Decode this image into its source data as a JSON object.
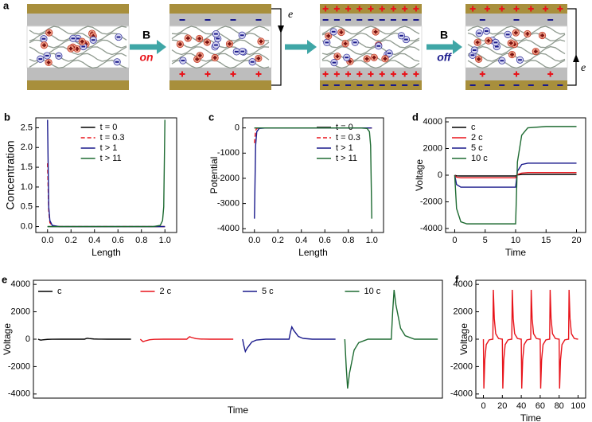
{
  "schematic": {
    "label": "a",
    "steps": [
      {
        "field": "B",
        "state": "on"
      },
      {
        "field": "B",
        "state": "off"
      }
    ],
    "current": [
      "e",
      "e"
    ]
  },
  "chart_data": [
    {
      "type": "line",
      "label": "b",
      "xlabel": "Length",
      "ylabel": "Concentration",
      "x": [
        0,
        0.01,
        0.02,
        0.04,
        0.1,
        0.5,
        0.9,
        0.96,
        0.98,
        0.99,
        1
      ],
      "series": [
        {
          "name": "t = 0",
          "color": "#000000",
          "values": [
            0,
            0,
            0,
            0,
            0,
            0,
            0,
            0,
            0,
            0,
            0
          ]
        },
        {
          "name": "t = 0.3",
          "color": "#e8141b",
          "dash": true,
          "values": [
            1.6,
            0.4,
            0.1,
            0.02,
            0,
            0,
            0,
            0,
            0,
            0,
            0
          ]
        },
        {
          "name": "t > 1",
          "color": "#1a1a8c",
          "values": [
            2.7,
            0.5,
            0.15,
            0.03,
            0,
            0,
            0,
            0,
            0,
            0,
            0
          ]
        },
        {
          "name": "t > 11",
          "color": "#1e6b32",
          "values": [
            0,
            0,
            0,
            0,
            0,
            0,
            0,
            0.03,
            0.15,
            0.5,
            2.7
          ]
        }
      ],
      "xlim": [
        -0.1,
        1.1
      ],
      "ylim": [
        -0.15,
        2.75
      ],
      "xticks": [
        {
          "value": 0,
          "label": "0.0"
        },
        {
          "value": 0.2,
          "label": "0.2"
        },
        {
          "value": 0.4,
          "label": "0.4"
        },
        {
          "value": 0.6,
          "label": "0.6"
        },
        {
          "value": 0.8,
          "label": "0.8"
        },
        {
          "value": 1,
          "label": "1.0"
        }
      ],
      "yticks": [
        {
          "value": 0,
          "label": "0.0"
        },
        {
          "value": 0.5,
          "label": "0.5"
        },
        {
          "value": 1,
          "label": "1.0"
        },
        {
          "value": 1.5,
          "label": "1.5"
        },
        {
          "value": 2,
          "label": "2.0"
        },
        {
          "value": 2.5,
          "label": "2.5"
        }
      ],
      "legend": "upper center"
    },
    {
      "type": "line",
      "label": "c",
      "xlabel": "Length",
      "ylabel": "Potential",
      "x": [
        0,
        0.01,
        0.02,
        0.04,
        0.1,
        0.5,
        0.9,
        0.96,
        0.98,
        0.99,
        1
      ],
      "series": [
        {
          "name": "t = 0",
          "color": "#000000",
          "values": [
            0,
            0,
            0,
            0,
            0,
            0,
            0,
            0,
            0,
            0,
            0
          ]
        },
        {
          "name": "t = 0.3",
          "color": "#e8141b",
          "dash": true,
          "values": [
            -600,
            -100,
            -20,
            0,
            0,
            0,
            0,
            0,
            0,
            0,
            0
          ]
        },
        {
          "name": "t > 1",
          "color": "#1a1a8c",
          "values": [
            -3600,
            -700,
            -150,
            -20,
            0,
            0,
            0,
            0,
            0,
            0,
            0
          ]
        },
        {
          "name": "t > 11",
          "color": "#1e6b32",
          "values": [
            0,
            0,
            0,
            0,
            0,
            0,
            0,
            -20,
            -150,
            -700,
            -3600
          ]
        }
      ],
      "xlim": [
        -0.1,
        1.1
      ],
      "ylim": [
        -4150,
        400
      ],
      "xticks": [
        {
          "value": 0,
          "label": "0.0"
        },
        {
          "value": 0.2,
          "label": "0.2"
        },
        {
          "value": 0.4,
          "label": "0.4"
        },
        {
          "value": 0.6,
          "label": "0.6"
        },
        {
          "value": 0.8,
          "label": "0.8"
        },
        {
          "value": 1,
          "label": "1.0"
        }
      ],
      "yticks": [
        -4000,
        -3000,
        -2000,
        -1000,
        0
      ],
      "legend": "upper right"
    },
    {
      "type": "line",
      "label": "d",
      "xlabel": "Time",
      "ylabel": "Voltage",
      "x": [
        0,
        0.3,
        1,
        2,
        5,
        9.9,
        10,
        10.3,
        11,
        12,
        15,
        20
      ],
      "series": [
        {
          "name": "c",
          "color": "#000000",
          "values": [
            0,
            -50,
            -60,
            -60,
            -60,
            -60,
            -60,
            20,
            50,
            60,
            60,
            60
          ]
        },
        {
          "name": "2 c",
          "color": "#e8141b",
          "values": [
            0,
            -150,
            -200,
            -200,
            -200,
            -200,
            -200,
            50,
            150,
            200,
            200,
            200
          ]
        },
        {
          "name": "5 c",
          "color": "#1a1a8c",
          "values": [
            0,
            -700,
            -900,
            -900,
            -900,
            -900,
            -900,
            300,
            800,
            900,
            900,
            900
          ]
        },
        {
          "name": "10 c",
          "color": "#1e6b32",
          "values": [
            0,
            -2500,
            -3500,
            -3650,
            -3650,
            -3650,
            -3650,
            1000,
            3000,
            3550,
            3650,
            3650
          ]
        }
      ],
      "xlim": [
        -1.5,
        21.5
      ],
      "ylim": [
        -4300,
        4300
      ],
      "xticks": [
        0,
        5,
        10,
        15,
        20
      ],
      "yticks": [
        -4000,
        -2000,
        0,
        2000,
        4000
      ],
      "legend": "upper left"
    },
    {
      "type": "line",
      "label": "e",
      "xlabel": "Time",
      "ylabel": "Voltage",
      "arrangement": "side-by-side",
      "series": [
        {
          "name": "c",
          "color": "#000000",
          "x": [
            0,
            0.3,
            0.6,
            1,
            2,
            3,
            5,
            10,
            10.3,
            10.6,
            11,
            12,
            13,
            15,
            20
          ],
          "values": [
            0,
            -40,
            -70,
            -50,
            -15,
            -5,
            0,
            0,
            40,
            70,
            50,
            15,
            5,
            0,
            0
          ]
        },
        {
          "name": "2 c",
          "color": "#e8141b",
          "x": [
            0,
            0.3,
            0.6,
            1,
            2,
            3,
            5,
            10,
            10.3,
            10.6,
            11,
            12,
            13,
            15,
            20
          ],
          "values": [
            0,
            -100,
            -180,
            -130,
            -40,
            -10,
            0,
            0,
            100,
            180,
            130,
            40,
            10,
            0,
            0
          ]
        },
        {
          "name": "5 c",
          "color": "#1a1a8c",
          "x": [
            0,
            0.3,
            0.6,
            1,
            2,
            3,
            5,
            10,
            10.3,
            10.6,
            11,
            12,
            13,
            15,
            20
          ],
          "values": [
            0,
            -500,
            -900,
            -650,
            -200,
            -60,
            0,
            0,
            500,
            900,
            650,
            200,
            60,
            0,
            0
          ]
        },
        {
          "name": "10 c",
          "color": "#1e6b32",
          "x": [
            0,
            0.3,
            0.6,
            1,
            2,
            3,
            5,
            10,
            10.3,
            10.6,
            11,
            12,
            13,
            15,
            20
          ],
          "values": [
            0,
            -2000,
            -3600,
            -2500,
            -800,
            -250,
            0,
            0,
            2000,
            3600,
            2500,
            800,
            250,
            0,
            0
          ]
        }
      ],
      "xlim": [
        -1,
        21
      ],
      "ylim": [
        -4300,
        4300
      ],
      "yticks": [
        -4000,
        -2000,
        0,
        2000,
        4000
      ],
      "legend": "upper left"
    },
    {
      "type": "line",
      "label": "f",
      "xlabel": "Time",
      "ylabel": "Voltage",
      "x": [
        0,
        0.5,
        1.5,
        3,
        6,
        10,
        10.5,
        11.5,
        13,
        16,
        20,
        20.5,
        21.5,
        23,
        26,
        30,
        30.5,
        31.5,
        33,
        36,
        40,
        40.5,
        41.5,
        43,
        46,
        50,
        50.5,
        51.5,
        53,
        56,
        60,
        60.5,
        61.5,
        63,
        66,
        70,
        70.5,
        71.5,
        73,
        76,
        80,
        80.5,
        81.5,
        83,
        86,
        90,
        90.5,
        91.5,
        93,
        96,
        100
      ],
      "series": [
        {
          "color": "#e8141b",
          "values": [
            0,
            -3600,
            -1500,
            -400,
            -50,
            0,
            3600,
            1500,
            400,
            50,
            0,
            -3600,
            -1500,
            -400,
            -50,
            0,
            3600,
            1500,
            400,
            50,
            0,
            -3600,
            -1500,
            -400,
            -50,
            0,
            3600,
            1500,
            400,
            50,
            0,
            -3600,
            -1500,
            -400,
            -50,
            0,
            3600,
            1500,
            400,
            50,
            0,
            -3600,
            -1500,
            -400,
            -50,
            0,
            3600,
            1500,
            400,
            50,
            0
          ]
        }
      ],
      "xlim": [
        -8,
        108
      ],
      "ylim": [
        -4300,
        4300
      ],
      "xticks": [
        0,
        20,
        40,
        60,
        80,
        100
      ],
      "yticks": [
        -4000,
        -2000,
        0,
        2000,
        4000
      ]
    }
  ]
}
